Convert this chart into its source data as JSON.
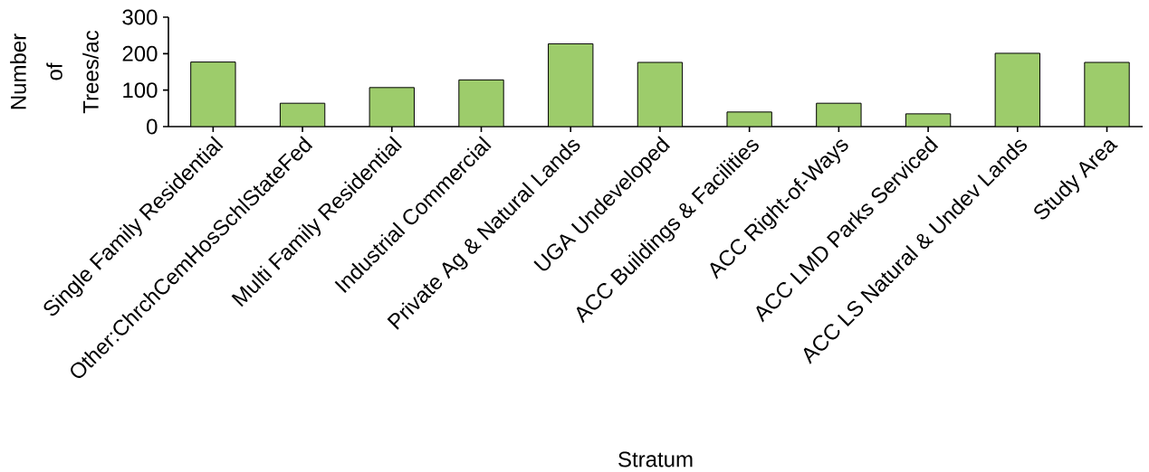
{
  "chart_data": {
    "type": "bar",
    "xlabel": "Stratum",
    "ylabel": "Number of Trees/ac",
    "categories": [
      "Single Family Residential",
      "Other:ChrchCemHosSchlStateFed",
      "Multi Family Residential",
      "Industrial Commercial",
      "Private Ag & Natural Lands",
      "UGA Undeveloped",
      "ACC Buildings & Facilities",
      "ACC Right-of-Ways",
      "ACC LMD Parks Serviced",
      "ACC LS Natural & Undev Lands",
      "Study Area"
    ],
    "values": [
      177,
      64,
      107,
      128,
      227,
      176,
      40,
      64,
      35,
      201,
      176
    ],
    "color": "#9dcc6b",
    "ylim": [
      0,
      300
    ],
    "yticks": [
      0,
      100,
      200,
      300
    ],
    "grid": false
  }
}
